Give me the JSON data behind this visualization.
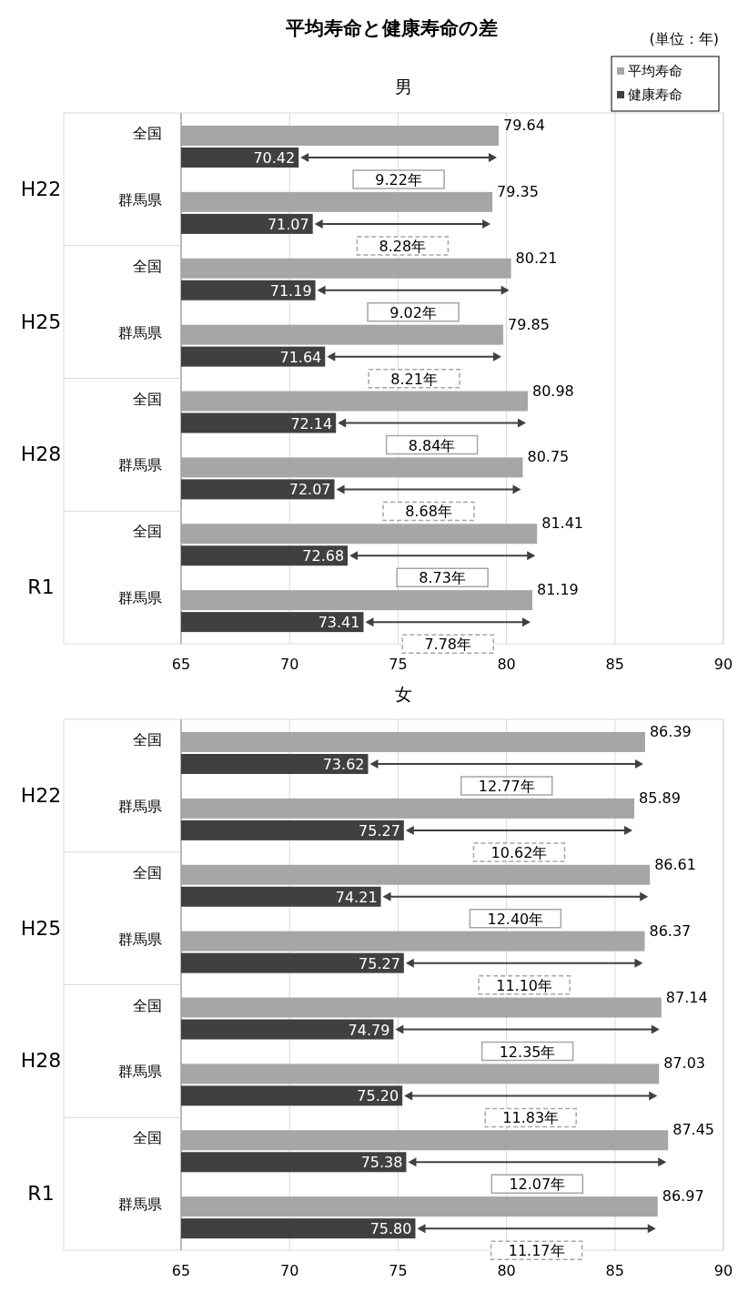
{
  "chart_data": [
    {
      "type": "bar",
      "title": "平均寿命と健康寿命の差",
      "subtitle": "男",
      "orientation": "horizontal",
      "categories": [
        "全国",
        "群馬県",
        "全国",
        "群馬県",
        "全国",
        "群馬県",
        "全国",
        "群馬県"
      ],
      "series": [
        {
          "name": "平均寿命",
          "color": "#a6a6a6",
          "values": [
            79.64,
            79.35,
            80.21,
            79.85,
            80.98,
            80.75,
            81.41,
            81.19
          ]
        },
        {
          "name": "健康寿命",
          "color": "#404040",
          "values": [
            70.42,
            71.07,
            71.19,
            71.64,
            72.14,
            72.07,
            72.68,
            73.41
          ]
        }
      ],
      "xlim": [
        65,
        90
      ],
      "xticks": [
        65,
        70,
        75,
        80,
        85,
        90
      ],
      "grid": "x",
      "legend": "top right",
      "data_labels": true,
      "annotations": [
        "H22",
        "H25",
        "H28",
        "R1",
        "9.22年",
        "8.28年",
        "9.02年",
        "8.21年",
        "8.84年",
        "8.68年",
        "8.73年",
        "7.78年",
        "(単位：年)"
      ]
    },
    {
      "type": "bar",
      "title": "女",
      "orientation": "horizontal",
      "categories": [
        "全国",
        "群馬県",
        "全国",
        "群馬県",
        "全国",
        "群馬県",
        "全国",
        "群馬県"
      ],
      "series": [
        {
          "color": "#a6a6a6",
          "values": [
            86.39,
            85.89,
            86.61,
            86.37,
            87.14,
            87.03,
            87.45,
            86.97
          ]
        },
        {
          "color": "#404040",
          "values": [
            73.62,
            75.27,
            74.21,
            75.27,
            74.79,
            75.2,
            75.38,
            75.8
          ],
          "value_labels": [
            "73.62",
            "75.27",
            "74.21",
            "75.27",
            "74.79",
            "75.20",
            "75.38",
            "75.80"
          ]
        }
      ],
      "xlim": [
        65,
        90
      ],
      "xticks": [
        65,
        70,
        75,
        80,
        85,
        90
      ],
      "grid": "x",
      "data_labels": true,
      "annotations": [
        "H22",
        "H25",
        "H28",
        "R1",
        "12.77年",
        "10.62年",
        "12.40年",
        "11.10年",
        "12.35年",
        "11.83年",
        "12.07年",
        "11.17年"
      ]
    }
  ]
}
